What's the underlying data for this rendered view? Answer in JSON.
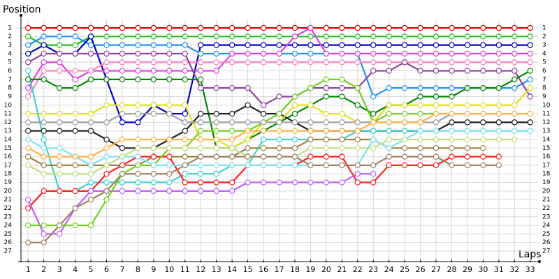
{
  "chart_data": {
    "type": "line",
    "y_label": "Position",
    "x_label": "Laps",
    "x": [
      1,
      2,
      3,
      4,
      5,
      6,
      7,
      8,
      9,
      10,
      11,
      12,
      13,
      14,
      15,
      16,
      17,
      18,
      19,
      20,
      21,
      22,
      23,
      24,
      25,
      26,
      27,
      28,
      29,
      30,
      31,
      32,
      33
    ],
    "xlim": [
      0.5,
      33.5
    ],
    "xticks": [
      1,
      2,
      3,
      4,
      5,
      6,
      7,
      8,
      9,
      10,
      11,
      12,
      13,
      14,
      15,
      16,
      17,
      18,
      19,
      20,
      21,
      22,
      23,
      24,
      25,
      26,
      27,
      28,
      29,
      30,
      31,
      32,
      33
    ],
    "ylim": [
      0,
      28
    ],
    "y_inverted": true,
    "yticks": [
      1,
      2,
      3,
      4,
      5,
      6,
      7,
      8,
      9,
      10,
      11,
      12,
      13,
      14,
      15,
      16,
      17,
      18,
      19,
      20,
      21,
      22,
      23,
      24,
      25,
      26,
      27
    ],
    "grid": true,
    "series": [
      {
        "color": "#e00000",
        "values": [
          1,
          1,
          1,
          1,
          1,
          1,
          1,
          1,
          1,
          1,
          1,
          1,
          1,
          1,
          1,
          1,
          1,
          1,
          1,
          1,
          1,
          1,
          1,
          1,
          1,
          1,
          1,
          1,
          1,
          1,
          1,
          1,
          1
        ]
      },
      {
        "color": "#20c020",
        "values": [
          2,
          3,
          3,
          3,
          2,
          2,
          2,
          2,
          2,
          2,
          2,
          2,
          2,
          2,
          2,
          2,
          2,
          2,
          2,
          2,
          2,
          2,
          2,
          2,
          2,
          2,
          2,
          2,
          2,
          2,
          2,
          2,
          2
        ]
      },
      {
        "color": "#1e90ff",
        "values": [
          3,
          2,
          2,
          2,
          3,
          3,
          3,
          3,
          3,
          3,
          3,
          4,
          4,
          4,
          4,
          4,
          4,
          4,
          4,
          4,
          4,
          4,
          9,
          8,
          8,
          8,
          8,
          8,
          8,
          8,
          8,
          8,
          7
        ]
      },
      {
        "color": "#0000cc",
        "values": [
          4,
          3,
          4,
          4,
          2,
          7,
          12,
          12,
          10,
          11,
          11,
          3,
          3,
          3,
          3,
          3,
          3,
          3,
          3,
          3,
          3,
          3,
          3,
          3,
          3,
          3,
          3,
          3,
          3,
          3,
          3,
          3,
          3
        ]
      },
      {
        "color": "#e040e0",
        "values": [
          8,
          5,
          5,
          7,
          6,
          6,
          6,
          6,
          6,
          6,
          6,
          6,
          6,
          4,
          4,
          4,
          4,
          2,
          1,
          4,
          4,
          4,
          4,
          4,
          4,
          4,
          4,
          4,
          4,
          4,
          4,
          4,
          4
        ]
      },
      {
        "color": "#ff80c0",
        "values": [
          9,
          6,
          6,
          6,
          6,
          5,
          5,
          5,
          5,
          5,
          5,
          5,
          5,
          5,
          5,
          5,
          5,
          5,
          5,
          5,
          5,
          5,
          5,
          5,
          5,
          5,
          5,
          5,
          5,
          5,
          5,
          5,
          5
        ]
      },
      {
        "color": "#9040a0",
        "values": [
          5,
          4,
          4,
          4,
          4,
          4,
          4,
          4,
          4,
          4,
          4,
          8,
          8,
          8,
          8,
          10,
          9,
          9,
          8,
          8,
          8,
          8,
          6,
          6,
          5,
          6,
          6,
          6,
          6,
          6,
          6,
          6,
          9
        ]
      },
      {
        "color": "#008800",
        "values": [
          7,
          7,
          8,
          8,
          7,
          7,
          7,
          7,
          7,
          7,
          7,
          7,
          15,
          15,
          14,
          13,
          12,
          11,
          10,
          9,
          9,
          10,
          11,
          10,
          10,
          9,
          9,
          9,
          8,
          8,
          8,
          7,
          6
        ]
      },
      {
        "color": "#202020",
        "values": [
          13,
          13,
          13,
          13,
          13,
          14,
          15,
          15,
          15,
          14,
          13,
          11,
          11,
          11,
          10,
          11,
          11,
          12,
          13,
          13,
          13,
          13,
          13,
          13,
          13,
          13,
          13,
          12,
          12,
          12,
          12,
          12,
          12
        ]
      },
      {
        "color": "#e0e020",
        "values": [
          11,
          11,
          11,
          11,
          11,
          10,
          10,
          10,
          10,
          10,
          10,
          14,
          14,
          15,
          14,
          12,
          12,
          10,
          10,
          11,
          11,
          12,
          12,
          10,
          10,
          10,
          10,
          10,
          10,
          10,
          10,
          10,
          8
        ]
      },
      {
        "color": "#40d0d0",
        "values": [
          6,
          14,
          20,
          20,
          19,
          19,
          19,
          19,
          19,
          19,
          18,
          18,
          18,
          17,
          17,
          14,
          14,
          14,
          14,
          14,
          14,
          13,
          13,
          13,
          13,
          13,
          13,
          13,
          13,
          13,
          13,
          13,
          13
        ]
      },
      {
        "color": "#a08040",
        "values": [
          16,
          17,
          17,
          17,
          17,
          17,
          17,
          17,
          16,
          16,
          16,
          16,
          16,
          16,
          15,
          15,
          15,
          15,
          14,
          14,
          14,
          14,
          14,
          15,
          15,
          15,
          15,
          15,
          15,
          15,
          null,
          null,
          null
        ]
      },
      {
        "color": "#ff2020",
        "values": [
          22,
          20,
          20,
          20,
          20,
          18,
          17,
          16,
          16,
          16,
          19,
          19,
          19,
          19,
          17,
          17,
          17,
          17,
          16,
          16,
          16,
          19,
          19,
          17,
          17,
          17,
          17,
          16,
          16,
          16,
          16,
          null,
          null
        ]
      },
      {
        "color": "#c060ff",
        "values": [
          21,
          25,
          25,
          22,
          20,
          20,
          20,
          20,
          20,
          20,
          20,
          20,
          20,
          20,
          19,
          19,
          19,
          19,
          19,
          19,
          19,
          18,
          18,
          null,
          null,
          null,
          null,
          null,
          null,
          null,
          null,
          null,
          null
        ]
      },
      {
        "color": "#70d020",
        "values": [
          24,
          24,
          24,
          24,
          24,
          21,
          18,
          17,
          17,
          15,
          15,
          13,
          13,
          13,
          13,
          12,
          11,
          9,
          8,
          7,
          7,
          8,
          12,
          11,
          11,
          11,
          11,
          null,
          null,
          null,
          null,
          null,
          null
        ]
      },
      {
        "color": "#a0a0a0",
        "values": [
          12,
          12,
          12,
          12,
          12,
          12,
          11,
          11,
          11,
          11,
          12,
          12,
          12,
          12,
          12,
          12,
          12,
          12,
          12,
          12,
          12,
          12,
          12,
          12,
          12,
          12,
          12,
          11,
          11,
          11,
          11,
          11,
          11
        ]
      },
      {
        "color": "#80e0f0",
        "values": [
          14,
          15,
          15,
          16,
          17,
          16,
          16,
          16,
          17,
          17,
          17,
          17,
          17,
          17,
          17,
          17,
          17,
          17,
          17,
          17,
          17,
          17,
          14,
          15,
          14,
          13,
          13,
          13,
          13,
          13,
          13,
          13,
          13
        ]
      },
      {
        "color": "#ffb040",
        "values": [
          15,
          16,
          16,
          16,
          16,
          15,
          14,
          14,
          14,
          14,
          14,
          14,
          14,
          14,
          13,
          13,
          13,
          13,
          13,
          13,
          13,
          13,
          12,
          12,
          12,
          12,
          11,
          11,
          11,
          11,
          11,
          11,
          11
        ]
      },
      {
        "color": "#c0e080",
        "values": [
          17,
          18,
          18,
          18,
          18,
          17,
          16,
          15,
          15,
          15,
          15,
          15,
          15,
          15,
          16,
          16,
          16,
          16,
          15,
          15,
          15,
          15,
          15,
          14,
          14,
          14,
          14,
          14,
          14,
          14,
          14,
          14,
          null
        ]
      },
      {
        "color": "#a08060",
        "values": [
          26,
          26,
          24,
          22,
          21,
          20,
          18,
          18,
          18,
          18,
          17,
          16,
          16,
          16,
          16,
          16,
          16,
          16,
          17,
          17,
          17,
          17,
          17,
          16,
          16,
          16,
          16,
          17,
          17,
          17,
          17,
          null,
          null
        ]
      }
    ]
  }
}
